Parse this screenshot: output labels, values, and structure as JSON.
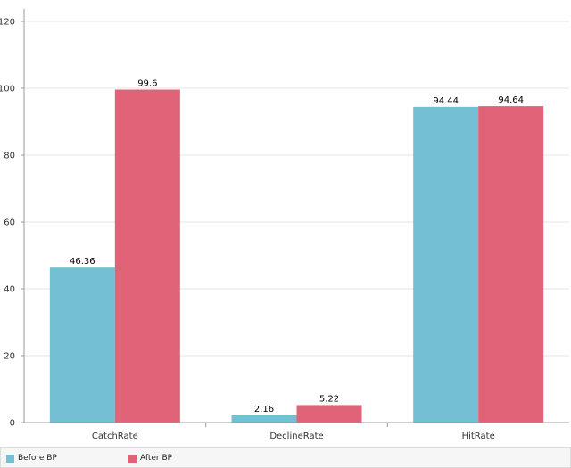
{
  "chart_data": {
    "type": "bar",
    "title": "",
    "xlabel": "",
    "ylabel": "",
    "categories": [
      "CatchRate",
      "DeclineRate",
      "HitRate"
    ],
    "series": [
      {
        "name": "Before BP",
        "values": [
          46.36,
          2.16,
          94.44
        ],
        "labels": [
          "46.36",
          "2.16",
          "94.44"
        ],
        "color": "#74bfd4"
      },
      {
        "name": "After BP",
        "values": [
          99.6,
          5.22,
          94.64
        ],
        "labels": [
          "99.6",
          "5.22",
          "94.64"
        ],
        "color": "#e06377"
      }
    ],
    "ylim": [
      0,
      120
    ],
    "yticks": [
      0,
      20,
      40,
      60,
      80,
      100,
      120
    ],
    "grid": true,
    "legend_position": "bottom-left"
  }
}
